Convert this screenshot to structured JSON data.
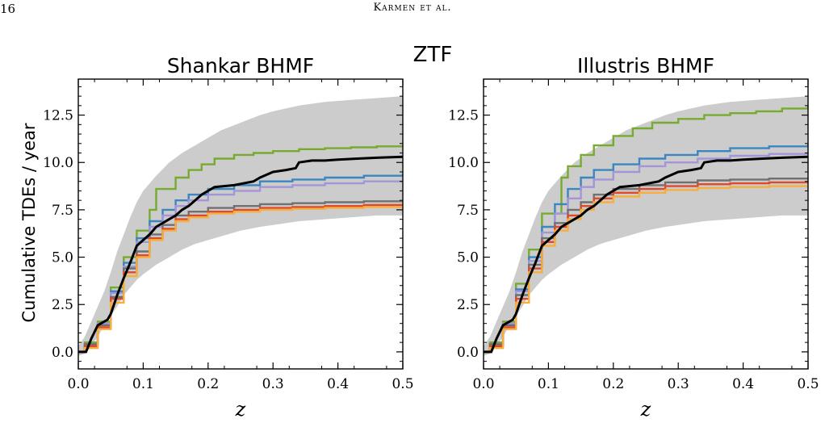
{
  "page_header": {
    "page_number": "16",
    "running_head": "Karmen et al."
  },
  "figure": {
    "suptitle": "ZTF",
    "ylabel": "Cumulative TDEs / year",
    "colors": {
      "band": "#cccccc",
      "green": "#77ab2f",
      "blue": "#3a86c0",
      "purple": "#a495d8",
      "gray": "#707070",
      "red": "#de4a2c",
      "orange": "#f6ae3e",
      "black": "#000000"
    }
  },
  "chart_data": [
    {
      "type": "line",
      "title": "Shankar BHMF",
      "xlabel": "z",
      "ylabel": "Cumulative TDEs / year",
      "xlim": [
        0,
        0.5
      ],
      "ylim": [
        -0.9,
        14.4
      ],
      "xticks": [
        "0.0",
        "0.1",
        "0.2",
        "0.3",
        "0.4",
        "0.5"
      ],
      "yticks": [
        "0.0",
        "2.5",
        "5.0",
        "7.5",
        "10.0",
        "12.5"
      ],
      "band": {
        "x": [
          0.0,
          0.01,
          0.02,
          0.03,
          0.04,
          0.05,
          0.06,
          0.07,
          0.08,
          0.09,
          0.1,
          0.12,
          0.14,
          0.16,
          0.18,
          0.2,
          0.22,
          0.25,
          0.28,
          0.3,
          0.34,
          0.38,
          0.42,
          0.46,
          0.5
        ],
        "upper": [
          0.3,
          0.8,
          1.6,
          2.4,
          3.2,
          4.2,
          5.3,
          6.2,
          7.1,
          7.9,
          8.5,
          9.3,
          10.0,
          10.5,
          10.9,
          11.3,
          11.7,
          12.1,
          12.5,
          12.7,
          13.0,
          13.2,
          13.3,
          13.4,
          13.5
        ],
        "lower": [
          -0.2,
          -0.1,
          0.3,
          0.8,
          1.4,
          1.9,
          2.4,
          3.0,
          3.4,
          3.8,
          4.1,
          4.6,
          5.0,
          5.4,
          5.7,
          5.9,
          6.1,
          6.4,
          6.6,
          6.7,
          6.9,
          7.0,
          7.1,
          7.2,
          7.2
        ]
      },
      "series": [
        {
          "color_key": "green",
          "step": true,
          "x": [
            0.0,
            0.01,
            0.03,
            0.05,
            0.06,
            0.07,
            0.09,
            0.1,
            0.11,
            0.12,
            0.13,
            0.15,
            0.17,
            0.19,
            0.21,
            0.24,
            0.27,
            0.3,
            0.34,
            0.38,
            0.42,
            0.46,
            0.5
          ],
          "y": [
            0.0,
            0.5,
            1.6,
            3.4,
            3.4,
            5.0,
            6.4,
            6.4,
            7.5,
            8.6,
            8.6,
            9.2,
            9.6,
            9.9,
            10.2,
            10.4,
            10.5,
            10.6,
            10.7,
            10.75,
            10.8,
            10.85,
            10.9
          ]
        },
        {
          "color_key": "blue",
          "step": true,
          "x": [
            0.0,
            0.01,
            0.03,
            0.05,
            0.07,
            0.09,
            0.11,
            0.13,
            0.15,
            0.17,
            0.2,
            0.24,
            0.28,
            0.33,
            0.38,
            0.44,
            0.5
          ],
          "y": [
            0.0,
            0.4,
            1.5,
            3.2,
            4.7,
            6.0,
            6.9,
            7.5,
            8.0,
            8.3,
            8.6,
            8.8,
            9.0,
            9.1,
            9.2,
            9.3,
            9.4
          ]
        },
        {
          "color_key": "purple",
          "step": true,
          "x": [
            0.0,
            0.01,
            0.03,
            0.05,
            0.07,
            0.09,
            0.11,
            0.13,
            0.15,
            0.17,
            0.2,
            0.24,
            0.28,
            0.33,
            0.38,
            0.44,
            0.5
          ],
          "y": [
            0.0,
            0.4,
            1.5,
            3.1,
            4.5,
            5.8,
            6.6,
            7.2,
            7.7,
            8.0,
            8.3,
            8.5,
            8.7,
            8.8,
            8.9,
            9.0,
            9.05
          ]
        },
        {
          "color_key": "gray",
          "step": true,
          "x": [
            0.0,
            0.01,
            0.03,
            0.05,
            0.07,
            0.09,
            0.11,
            0.13,
            0.15,
            0.17,
            0.2,
            0.24,
            0.28,
            0.33,
            0.38,
            0.44,
            0.5
          ],
          "y": [
            0.0,
            0.4,
            1.4,
            2.9,
            4.4,
            5.3,
            6.2,
            6.7,
            7.2,
            7.4,
            7.6,
            7.7,
            7.8,
            7.85,
            7.9,
            7.95,
            8.0
          ]
        },
        {
          "color_key": "red",
          "step": true,
          "x": [
            0.0,
            0.01,
            0.03,
            0.05,
            0.07,
            0.09,
            0.11,
            0.13,
            0.15,
            0.17,
            0.2,
            0.24,
            0.28,
            0.33,
            0.38,
            0.44,
            0.5
          ],
          "y": [
            0.0,
            0.3,
            1.3,
            2.8,
            4.2,
            5.1,
            6.0,
            6.5,
            7.0,
            7.2,
            7.4,
            7.5,
            7.6,
            7.65,
            7.7,
            7.75,
            7.8
          ]
        },
        {
          "color_key": "orange",
          "step": true,
          "x": [
            0.0,
            0.01,
            0.03,
            0.05,
            0.07,
            0.09,
            0.11,
            0.13,
            0.15,
            0.17,
            0.2,
            0.24,
            0.28,
            0.33,
            0.38,
            0.44,
            0.5
          ],
          "y": [
            0.0,
            0.2,
            1.2,
            2.6,
            4.0,
            5.0,
            5.9,
            6.4,
            6.9,
            7.1,
            7.3,
            7.4,
            7.5,
            7.55,
            7.6,
            7.65,
            7.7
          ]
        },
        {
          "color_key": "black",
          "step": false,
          "x": [
            0.0,
            0.012,
            0.02,
            0.03,
            0.04,
            0.045,
            0.05,
            0.06,
            0.07,
            0.08,
            0.09,
            0.1,
            0.11,
            0.12,
            0.13,
            0.14,
            0.15,
            0.16,
            0.17,
            0.18,
            0.19,
            0.21,
            0.24,
            0.27,
            0.28,
            0.3,
            0.32,
            0.335,
            0.34,
            0.36,
            0.38,
            0.4,
            0.43,
            0.46,
            0.5
          ],
          "y": [
            0.0,
            0.0,
            0.7,
            1.4,
            1.6,
            1.7,
            2.0,
            3.0,
            3.9,
            4.7,
            5.6,
            5.9,
            6.2,
            6.6,
            6.8,
            7.0,
            7.2,
            7.5,
            7.7,
            8.0,
            8.3,
            8.7,
            8.8,
            9.0,
            9.2,
            9.5,
            9.6,
            9.7,
            10.0,
            10.1,
            10.1,
            10.15,
            10.2,
            10.25,
            10.3
          ]
        }
      ]
    },
    {
      "type": "line",
      "title": "Illustris BHMF",
      "xlabel": "z",
      "ylabel": "",
      "xlim": [
        0,
        0.5
      ],
      "ylim": [
        -0.9,
        14.4
      ],
      "xticks": [
        "0.0",
        "0.1",
        "0.2",
        "0.3",
        "0.4",
        "0.5"
      ],
      "yticks": [
        "0.0",
        "2.5",
        "5.0",
        "7.5",
        "10.0",
        "12.5"
      ],
      "band": {
        "x": [
          0.0,
          0.01,
          0.02,
          0.03,
          0.04,
          0.05,
          0.06,
          0.07,
          0.08,
          0.09,
          0.1,
          0.12,
          0.14,
          0.16,
          0.18,
          0.2,
          0.22,
          0.25,
          0.28,
          0.3,
          0.34,
          0.38,
          0.42,
          0.46,
          0.5
        ],
        "upper": [
          0.3,
          0.8,
          1.6,
          2.4,
          3.2,
          4.2,
          5.3,
          6.2,
          7.1,
          7.9,
          8.5,
          9.3,
          10.0,
          10.5,
          10.9,
          11.3,
          11.7,
          12.1,
          12.5,
          12.7,
          13.0,
          13.2,
          13.3,
          13.4,
          13.5
        ],
        "lower": [
          -0.2,
          -0.1,
          0.3,
          0.8,
          1.4,
          1.9,
          2.4,
          3.0,
          3.4,
          3.8,
          4.1,
          4.6,
          5.0,
          5.4,
          5.7,
          5.9,
          6.1,
          6.4,
          6.6,
          6.7,
          6.9,
          7.0,
          7.1,
          7.2,
          7.2
        ]
      },
      "series": [
        {
          "color_key": "green",
          "step": true,
          "x": [
            0.0,
            0.01,
            0.03,
            0.05,
            0.06,
            0.07,
            0.09,
            0.1,
            0.12,
            0.13,
            0.15,
            0.17,
            0.2,
            0.23,
            0.26,
            0.3,
            0.34,
            0.38,
            0.42,
            0.46,
            0.5
          ],
          "y": [
            0.0,
            0.5,
            1.6,
            3.6,
            3.6,
            5.4,
            7.3,
            7.3,
            9.2,
            9.8,
            10.4,
            10.9,
            11.4,
            11.8,
            12.1,
            12.3,
            12.5,
            12.6,
            12.7,
            12.85,
            13.0
          ]
        },
        {
          "color_key": "blue",
          "step": true,
          "x": [
            0.0,
            0.01,
            0.03,
            0.05,
            0.07,
            0.09,
            0.11,
            0.13,
            0.15,
            0.17,
            0.2,
            0.24,
            0.28,
            0.33,
            0.38,
            0.44,
            0.5
          ],
          "y": [
            0.0,
            0.4,
            1.5,
            3.3,
            5.0,
            6.6,
            7.8,
            8.6,
            9.2,
            9.6,
            9.9,
            10.2,
            10.4,
            10.6,
            10.75,
            10.85,
            10.95
          ]
        },
        {
          "color_key": "purple",
          "step": true,
          "x": [
            0.0,
            0.01,
            0.03,
            0.05,
            0.07,
            0.09,
            0.11,
            0.13,
            0.15,
            0.17,
            0.2,
            0.24,
            0.28,
            0.33,
            0.38,
            0.44,
            0.5
          ],
          "y": [
            0.0,
            0.4,
            1.5,
            3.2,
            4.8,
            6.3,
            7.3,
            8.1,
            8.7,
            9.1,
            9.5,
            9.8,
            10.0,
            10.2,
            10.35,
            10.45,
            10.55
          ]
        },
        {
          "color_key": "gray",
          "step": true,
          "x": [
            0.0,
            0.01,
            0.03,
            0.05,
            0.07,
            0.09,
            0.11,
            0.13,
            0.15,
            0.17,
            0.2,
            0.24,
            0.28,
            0.33,
            0.38,
            0.44,
            0.5
          ],
          "y": [
            0.0,
            0.4,
            1.4,
            3.0,
            4.6,
            6.0,
            6.8,
            7.5,
            7.9,
            8.3,
            8.6,
            8.8,
            8.95,
            9.05,
            9.1,
            9.15,
            9.2
          ]
        },
        {
          "color_key": "red",
          "step": true,
          "x": [
            0.0,
            0.01,
            0.03,
            0.05,
            0.07,
            0.09,
            0.11,
            0.13,
            0.15,
            0.17,
            0.2,
            0.24,
            0.28,
            0.33,
            0.38,
            0.44,
            0.5
          ],
          "y": [
            0.0,
            0.3,
            1.3,
            2.8,
            4.4,
            5.8,
            6.6,
            7.2,
            7.7,
            8.1,
            8.4,
            8.6,
            8.75,
            8.85,
            8.9,
            8.95,
            9.0
          ]
        },
        {
          "color_key": "orange",
          "step": true,
          "x": [
            0.0,
            0.01,
            0.03,
            0.05,
            0.07,
            0.09,
            0.11,
            0.13,
            0.15,
            0.17,
            0.2,
            0.24,
            0.28,
            0.33,
            0.38,
            0.44,
            0.5
          ],
          "y": [
            0.0,
            0.2,
            1.2,
            2.6,
            4.2,
            5.6,
            6.4,
            7.0,
            7.5,
            7.9,
            8.2,
            8.4,
            8.55,
            8.65,
            8.7,
            8.75,
            8.8
          ]
        },
        {
          "color_key": "black",
          "step": false,
          "x": [
            0.0,
            0.012,
            0.02,
            0.03,
            0.04,
            0.045,
            0.05,
            0.06,
            0.07,
            0.08,
            0.09,
            0.1,
            0.11,
            0.12,
            0.13,
            0.14,
            0.15,
            0.16,
            0.17,
            0.18,
            0.19,
            0.21,
            0.24,
            0.27,
            0.28,
            0.3,
            0.32,
            0.335,
            0.34,
            0.36,
            0.38,
            0.4,
            0.43,
            0.46,
            0.5
          ],
          "y": [
            0.0,
            0.0,
            0.7,
            1.4,
            1.6,
            1.7,
            2.0,
            3.0,
            3.9,
            4.7,
            5.6,
            5.9,
            6.2,
            6.6,
            6.8,
            7.0,
            7.2,
            7.5,
            7.7,
            8.0,
            8.3,
            8.7,
            8.8,
            9.0,
            9.2,
            9.5,
            9.6,
            9.7,
            10.0,
            10.1,
            10.1,
            10.15,
            10.2,
            10.25,
            10.3
          ]
        }
      ]
    }
  ]
}
